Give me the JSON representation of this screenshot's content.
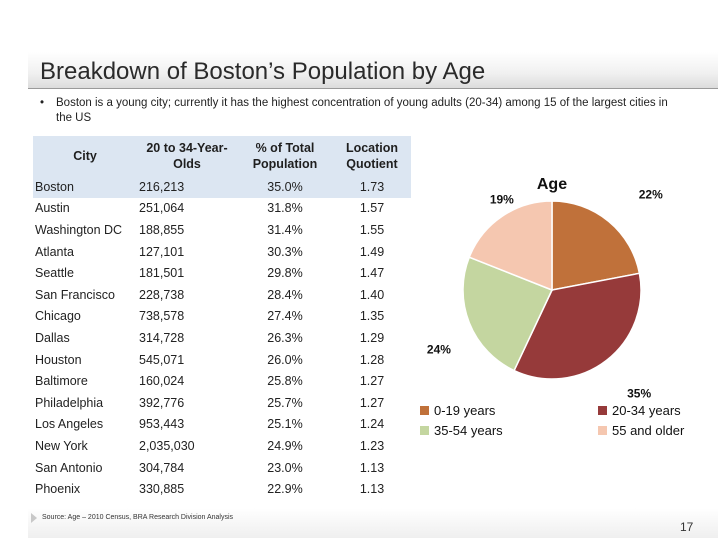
{
  "title": "Breakdown of Boston’s Population by Age",
  "bullet": {
    "marker": "•",
    "text": "Boston is a young city; currently it has the highest concentration of young adults (20-34) among 15 of the largest cities in the US"
  },
  "table": {
    "headers": [
      "City",
      "20 to 34-Year-Olds",
      "% of Total Population",
      "Location Quotient"
    ],
    "rows": [
      [
        "Boston",
        "216,213",
        "35.0%",
        "1.73"
      ],
      [
        "Austin",
        "251,064",
        "31.8%",
        "1.57"
      ],
      [
        "Washington DC",
        "188,855",
        "31.4%",
        "1.55"
      ],
      [
        "Atlanta",
        "127,101",
        "30.3%",
        "1.49"
      ],
      [
        "Seattle",
        "181,501",
        "29.8%",
        "1.47"
      ],
      [
        "San Francisco",
        "228,738",
        "28.4%",
        "1.40"
      ],
      [
        "Chicago",
        "738,578",
        "27.4%",
        "1.35"
      ],
      [
        "Dallas",
        "314,728",
        "26.3%",
        "1.29"
      ],
      [
        "Houston",
        "545,071",
        "26.0%",
        "1.28"
      ],
      [
        "Baltimore",
        "160,024",
        "25.8%",
        "1.27"
      ],
      [
        "Philadelphia",
        "392,776",
        "25.7%",
        "1.27"
      ],
      [
        "Los Angeles",
        "953,443",
        "25.1%",
        "1.24"
      ],
      [
        "New York",
        "2,035,030",
        "24.9%",
        "1.23"
      ],
      [
        "San Antonio",
        "304,784",
        "23.0%",
        "1.13"
      ],
      [
        "Phoenix",
        "330,885",
        "22.9%",
        "1.13"
      ]
    ]
  },
  "chart_data": {
    "type": "pie",
    "title": "Age",
    "categories": [
      "0-19 years",
      "20-34 years",
      "35-54 years",
      "55 and older"
    ],
    "values": [
      22,
      35,
      24,
      19
    ],
    "labels": [
      "22%",
      "35%",
      "24%",
      "19%"
    ],
    "colors": [
      "#c0713a",
      "#963a3a",
      "#c4d6a0",
      "#f5c7b0"
    ],
    "legend": "bottom"
  },
  "source": "Source: Age – 2010 Census, BRA Research Division Analysis",
  "page_number": "17"
}
